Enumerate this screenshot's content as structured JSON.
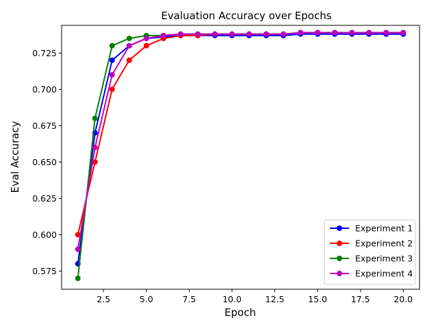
{
  "chart_data": {
    "type": "line",
    "title": "Evaluation Accuracy over Epochs",
    "xlabel": "Epoch",
    "ylabel": "Eval Accuracy",
    "xlim": [
      0.05,
      20.95
    ],
    "ylim": [
      0.5625,
      0.744
    ],
    "xticks": [
      2.5,
      5.0,
      7.5,
      10.0,
      12.5,
      15.0,
      17.5,
      20.0
    ],
    "xtick_labels": [
      "2.5",
      "5.0",
      "7.5",
      "10.0",
      "12.5",
      "15.0",
      "17.5",
      "20.0"
    ],
    "yticks": [
      0.575,
      0.6,
      0.625,
      0.65,
      0.675,
      0.7,
      0.725
    ],
    "ytick_labels": [
      "0.575",
      "0.600",
      "0.625",
      "0.650",
      "0.675",
      "0.700",
      "0.725"
    ],
    "grid": false,
    "legend_position": "bottom-right",
    "x": [
      1,
      2,
      3,
      4,
      5,
      6,
      7,
      8,
      9,
      10,
      11,
      12,
      13,
      14,
      15,
      16,
      17,
      18,
      19,
      20
    ],
    "series": [
      {
        "name": "Experiment 1",
        "color": "#0000ff",
        "values": [
          0.58,
          0.67,
          0.72,
          0.73,
          0.735,
          0.736,
          0.737,
          0.737,
          0.737,
          0.737,
          0.737,
          0.737,
          0.737,
          0.738,
          0.738,
          0.738,
          0.738,
          0.738,
          0.738,
          0.738
        ]
      },
      {
        "name": "Experiment 2",
        "color": "#ff0000",
        "values": [
          0.6,
          0.65,
          0.7,
          0.72,
          0.73,
          0.735,
          0.737,
          0.737,
          0.738,
          0.738,
          0.738,
          0.738,
          0.738,
          0.739,
          0.739,
          0.739,
          0.739,
          0.739,
          0.739,
          0.739
        ]
      },
      {
        "name": "Experiment 3",
        "color": "#008000",
        "values": [
          0.57,
          0.68,
          0.73,
          0.735,
          0.737,
          0.737,
          0.738,
          0.738,
          0.738,
          0.738,
          0.738,
          0.738,
          0.738,
          0.739,
          0.739,
          0.739,
          0.739,
          0.739,
          0.739,
          0.739
        ]
      },
      {
        "name": "Experiment 4",
        "color": "#bf00bf",
        "values": [
          0.59,
          0.66,
          0.71,
          0.73,
          0.735,
          0.737,
          0.738,
          0.738,
          0.738,
          0.738,
          0.738,
          0.738,
          0.738,
          0.739,
          0.739,
          0.739,
          0.739,
          0.739,
          0.739,
          0.739
        ]
      }
    ]
  }
}
